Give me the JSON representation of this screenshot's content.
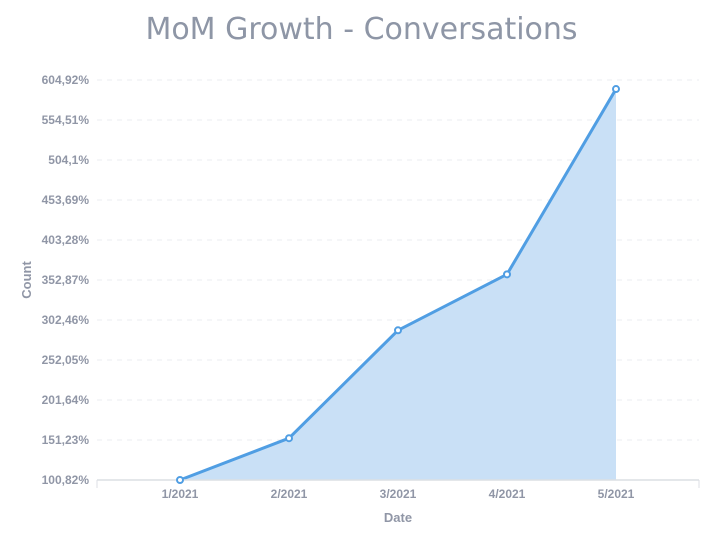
{
  "chart_data": {
    "type": "area",
    "title": "MoM Growth - Conversations",
    "xlabel": "Date",
    "ylabel": "Count",
    "categories": [
      "1/2021",
      "2/2021",
      "3/2021",
      "4/2021",
      "5/2021"
    ],
    "series": [
      {
        "values": [
          100.82,
          153.5,
          289.5,
          360.0,
          593.5
        ]
      }
    ],
    "yticks": [
      "100,82%",
      "151,23%",
      "201,64%",
      "252,05%",
      "302,46%",
      "352,87%",
      "403,28%",
      "453,69%",
      "504,1%",
      "554,51%",
      "604,92%"
    ],
    "ylim": [
      100.82,
      604.92
    ],
    "grid": true,
    "colors": {
      "line": "#509ee3",
      "fill": "#c9e0f6",
      "text": "#9096a6",
      "grid": "#ebedf0"
    }
  }
}
